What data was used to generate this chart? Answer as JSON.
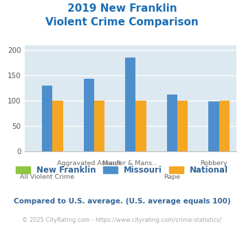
{
  "title_line1": "2019 New Franklin",
  "title_line2": "Violent Crime Comparison",
  "categories": [
    "All Violent Crime",
    "Aggravated Assault",
    "Murder & Mans...",
    "Rape",
    "Robbery"
  ],
  "new_franklin": [
    0,
    0,
    0,
    0,
    0
  ],
  "missouri": [
    130,
    143,
    185,
    112,
    99
  ],
  "national": [
    100,
    100,
    100,
    100,
    100
  ],
  "color_nf": "#8dc63f",
  "color_mo": "#4d8fcc",
  "color_nat": "#f5a623",
  "ylim": [
    0,
    210
  ],
  "yticks": [
    0,
    50,
    100,
    150,
    200
  ],
  "bg_color": "#dce9f0",
  "title_color": "#1a6eb5",
  "subtitle_note": "Compared to U.S. average. (U.S. average equals 100)",
  "footer": "© 2025 CityRating.com - https://www.cityrating.com/crime-statistics/",
  "note_color": "#336699",
  "footer_color": "#aaaaaa",
  "label_row1": [
    "",
    "Aggravated Assault",
    "Murder & Mans...",
    "",
    "Robbery"
  ],
  "label_row2": [
    "All Violent Crime",
    "",
    "",
    "Rape",
    ""
  ]
}
